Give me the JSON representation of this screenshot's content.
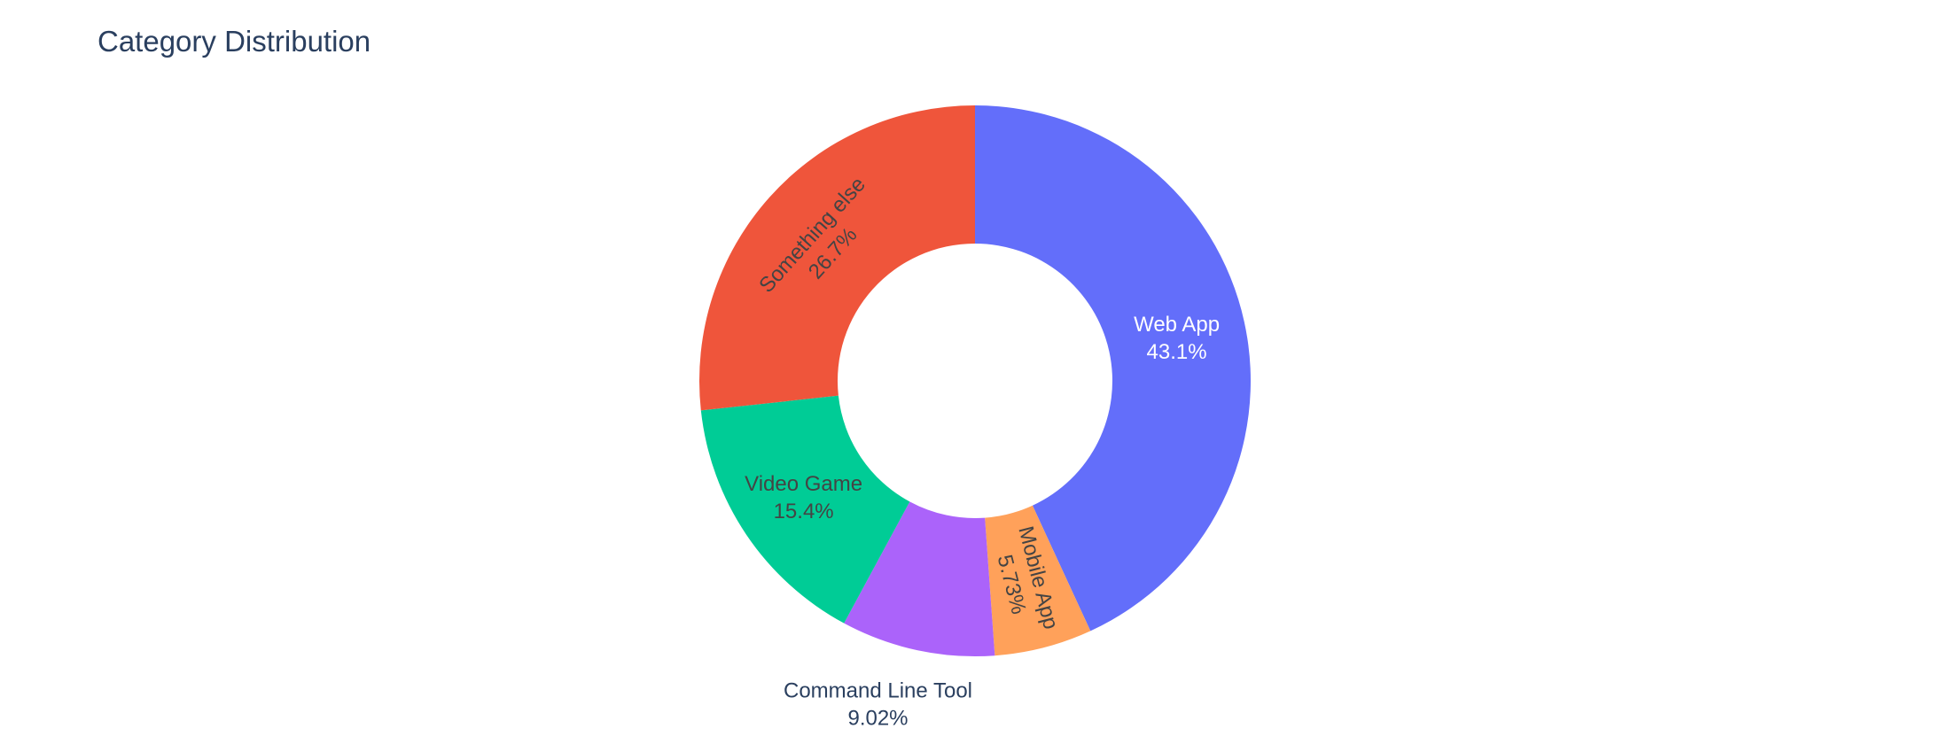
{
  "chart_data": {
    "type": "pie",
    "hole": true,
    "title": "Category Distribution",
    "slices": [
      {
        "label": "Web App",
        "percent_label": "43.1%",
        "value": 43.1,
        "color": "#636efa",
        "label_color": "#ffffff",
        "label_style": "horizontal"
      },
      {
        "label": "Mobile App",
        "percent_label": "5.73%",
        "value": 5.73,
        "color": "#ffa15a",
        "label_color": "#444444",
        "label_style": "radial"
      },
      {
        "label": "Command Line Tool",
        "percent_label": "9.02%",
        "value": 9.02,
        "color": "#ab63fa",
        "label_color": "#2a3f5f",
        "label_style": "outside"
      },
      {
        "label": "Video Game",
        "percent_label": "15.4%",
        "value": 15.4,
        "color": "#00cc96",
        "label_color": "#444444",
        "label_style": "horizontal"
      },
      {
        "label": "Something else",
        "percent_label": "26.7%",
        "value": 26.7,
        "color": "#ef553b",
        "label_color": "#444444",
        "label_style": "tangential"
      }
    ],
    "direction": "clockwise",
    "start_angle": "top",
    "legend": false
  }
}
